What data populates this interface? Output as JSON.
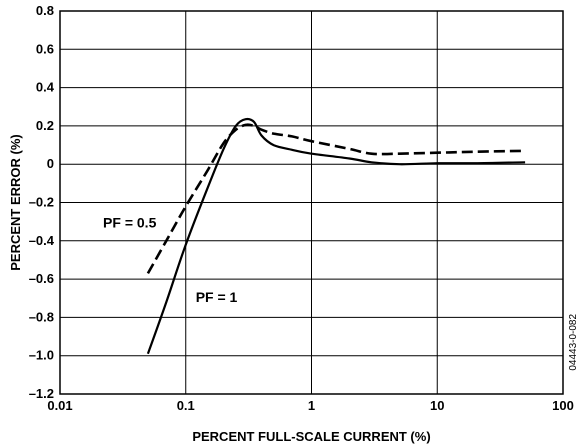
{
  "chart_data": {
    "type": "line",
    "title": "",
    "xlabel": "PERCENT FULL-SCALE CURRENT (%)",
    "ylabel": "PERCENT ERROR (%)",
    "x_scale": "log",
    "xlim": [
      0.01,
      100
    ],
    "ylim": [
      -1.2,
      0.8
    ],
    "x_ticks": [
      0.01,
      0.1,
      1,
      10,
      100
    ],
    "x_tick_labels": [
      "0.01",
      "0.1",
      "1",
      "10",
      "100"
    ],
    "y_ticks": [
      0.8,
      0.6,
      0.4,
      0.2,
      0,
      -0.2,
      -0.4,
      -0.6,
      -0.8,
      -1.0,
      -1.2
    ],
    "y_tick_labels": [
      "0.8",
      "0.6",
      "0.4",
      "0.2",
      "0",
      "–0.2",
      "–0.4",
      "–0.6",
      "–0.8",
      "–1.0",
      "–1.2"
    ],
    "grid": true,
    "legend": "none (series labeled by annotations)",
    "series": [
      {
        "name": "PF = 1",
        "style": "solid",
        "x": [
          0.05,
          0.07,
          0.1,
          0.15,
          0.2,
          0.25,
          0.3,
          0.35,
          0.4,
          0.5,
          0.7,
          1,
          2,
          3,
          5,
          10,
          20,
          50
        ],
        "y": [
          -0.99,
          -0.72,
          -0.42,
          -0.12,
          0.08,
          0.2,
          0.235,
          0.22,
          0.15,
          0.1,
          0.075,
          0.055,
          0.03,
          0.01,
          0.0,
          0.005,
          0.005,
          0.01
        ]
      },
      {
        "name": "PF = 0.5",
        "style": "dashed",
        "x": [
          0.05,
          0.07,
          0.1,
          0.15,
          0.2,
          0.25,
          0.3,
          0.35,
          0.4,
          0.5,
          0.7,
          1,
          2,
          3,
          5,
          10,
          20,
          50
        ],
        "y": [
          -0.57,
          -0.4,
          -0.22,
          -0.03,
          0.11,
          0.18,
          0.205,
          0.2,
          0.18,
          0.16,
          0.145,
          0.12,
          0.08,
          0.055,
          0.055,
          0.06,
          0.065,
          0.07
        ]
      }
    ],
    "annotations": [
      {
        "text": "PF = 0.5",
        "x": 0.022,
        "y": -0.33
      },
      {
        "text": "PF = 1",
        "x": 0.12,
        "y": -0.72
      }
    ],
    "side_code": "04443-0-082"
  }
}
